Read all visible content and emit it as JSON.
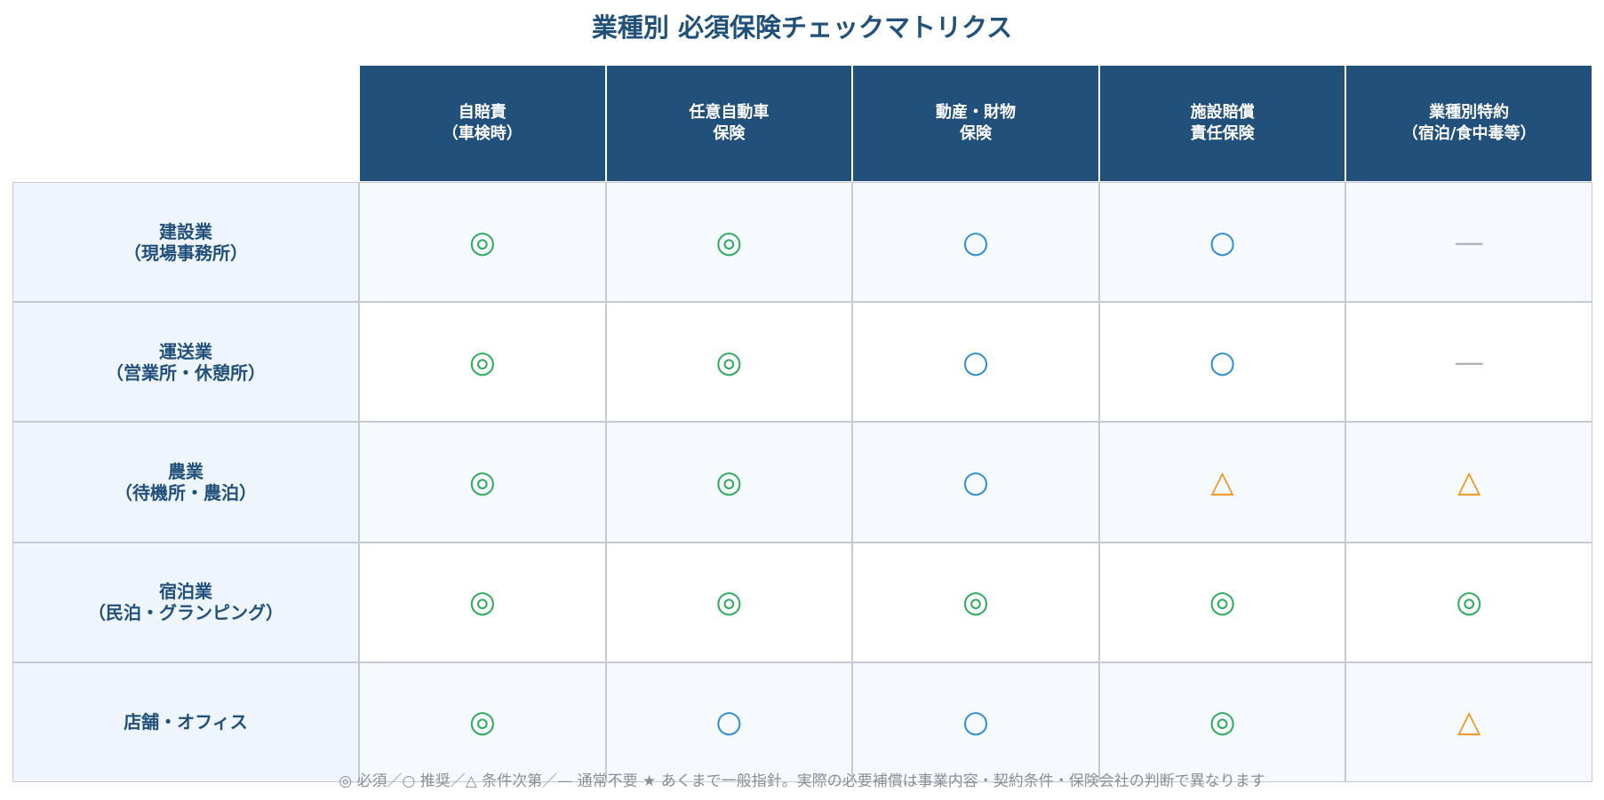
{
  "title": "業種別 必須保険チェックマトリクス",
  "columns": [
    "自賠責\n（車検時）",
    "任意自動車\n保険",
    "動産・財物\n保険",
    "施設賠償\n責任保険",
    "業種別特約\n（宿泊/食中毒等）"
  ],
  "rows": [
    {
      "label": "建設業\n（現場事務所）",
      "cells": [
        "◎",
        "◎",
        "○",
        "○",
        "—"
      ]
    },
    {
      "label": "運送業\n（営業所・休憩所）",
      "cells": [
        "◎",
        "◎",
        "○",
        "○",
        "—"
      ]
    },
    {
      "label": "農業\n（待機所・農泊）",
      "cells": [
        "◎",
        "◎",
        "○",
        "△",
        "△"
      ]
    },
    {
      "label": "宿泊業\n（民泊・グランピング）",
      "cells": [
        "◎",
        "◎",
        "◎",
        "◎",
        "◎"
      ]
    },
    {
      "label": "店舗・オフィス",
      "cells": [
        "◎",
        "○",
        "○",
        "◎",
        "△"
      ]
    }
  ],
  "symbol_colors": {
    "◎": "#2eab5c",
    "○": "#2f8fd0",
    "△": "#f0961e",
    "—": "#b0b4ba"
  },
  "footnote": "◎ 必須／○ 推奨／△ 条件次第／— 通常不要 ★ あくまで一般指針。実際の必要補償は事業内容・契約条件・保険会社の判断で異なります"
}
